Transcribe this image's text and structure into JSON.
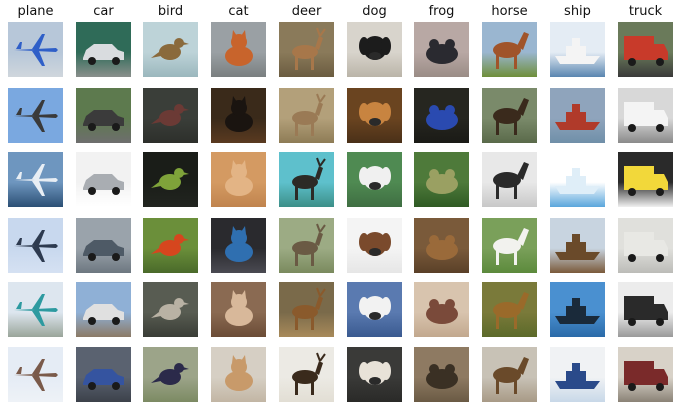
{
  "columns": [
    {
      "label": "plane",
      "tiles": [
        {
          "icon": "airplane-icon",
          "sky": "#b7c7d9",
          "ground": "#cfd6dc",
          "subject": "#2f5fc8"
        },
        {
          "icon": "airplane-icon",
          "sky": "#7aa8e0",
          "ground": "#7aa8e0",
          "subject": "#3a3a3a"
        },
        {
          "icon": "airplane-icon",
          "sky": "#6e96bf",
          "ground": "#2b4f74",
          "subject": "#e8eef4"
        },
        {
          "icon": "airplane-icon",
          "sky": "#c8d8ee",
          "ground": "#d5e1f2",
          "subject": "#2d3a4f"
        },
        {
          "icon": "airplane-icon",
          "sky": "#dde6ef",
          "ground": "#9aa59a",
          "subject": "#2d9aa0"
        },
        {
          "icon": "airplane-icon",
          "sky": "#e5ecf5",
          "ground": "#eef2f7",
          "subject": "#7a5a4a"
        }
      ]
    },
    {
      "label": "car",
      "tiles": [
        {
          "icon": "car-icon",
          "sky": "#2f6b58",
          "ground": "#8a8f8c",
          "subject": "#d9dcdf"
        },
        {
          "icon": "car-icon",
          "sky": "#5d7a4e",
          "ground": "#6e6e6e",
          "subject": "#3b3b3b"
        },
        {
          "icon": "car-icon",
          "sky": "#f2f2f2",
          "ground": "#ffffff",
          "subject": "#a9adb2"
        },
        {
          "icon": "car-icon",
          "sky": "#9aa3ab",
          "ground": "#6d7780",
          "subject": "#4e5a66"
        },
        {
          "icon": "car-icon",
          "sky": "#8fb0d6",
          "ground": "#8c7a66",
          "subject": "#e0e0e0"
        },
        {
          "icon": "car-icon",
          "sky": "#5a6270",
          "ground": "#3c414a",
          "subject": "#3554a0"
        }
      ]
    },
    {
      "label": "bird",
      "tiles": [
        {
          "icon": "bird-icon",
          "sky": "#bdd3d8",
          "ground": "#9bb7bd",
          "subject": "#8a6a3c"
        },
        {
          "icon": "bird-icon",
          "sky": "#3a3e39",
          "ground": "#2d2f2b",
          "subject": "#6b3a35"
        },
        {
          "icon": "bird-icon",
          "sky": "#1a1d18",
          "ground": "#222520",
          "subject": "#7fa33a"
        },
        {
          "icon": "bird-icon",
          "sky": "#6b8f3a",
          "ground": "#4a6a2a",
          "subject": "#d6461e"
        },
        {
          "icon": "bird-icon",
          "sky": "#585c52",
          "ground": "#3a3d36",
          "subject": "#b9b2a4"
        },
        {
          "icon": "bird-icon",
          "sky": "#9ca489",
          "ground": "#7c8a63",
          "subject": "#2b2a4a"
        }
      ]
    },
    {
      "label": "cat",
      "tiles": [
        {
          "icon": "cat-icon",
          "sky": "#9aa0a4",
          "ground": "#7a7f80",
          "subject": "#c8642c"
        },
        {
          "icon": "cat-icon",
          "sky": "#3a2a1a",
          "ground": "#5a3a20",
          "subject": "#1a1410"
        },
        {
          "icon": "cat-icon",
          "sky": "#d49a62",
          "ground": "#c0844e",
          "subject": "#e3b485"
        },
        {
          "icon": "cat-icon",
          "sky": "#2a2a2e",
          "ground": "#4a4a52",
          "subject": "#2f6fb0"
        },
        {
          "icon": "cat-icon",
          "sky": "#8a6a52",
          "ground": "#6b4c36",
          "subject": "#d8b89a"
        },
        {
          "icon": "cat-icon",
          "sky": "#d6cfc4",
          "ground": "#c2b6a4",
          "subject": "#c89a6a"
        }
      ]
    },
    {
      "label": "deer",
      "tiles": [
        {
          "icon": "deer-icon",
          "sky": "#8a7a5a",
          "ground": "#6b5c40",
          "subject": "#a7774a"
        },
        {
          "icon": "deer-icon",
          "sky": "#b3a07a",
          "ground": "#8e7c56",
          "subject": "#9a7a55"
        },
        {
          "icon": "deer-icon",
          "sky": "#5ec0cc",
          "ground": "#3c8f88",
          "subject": "#2c2a25"
        },
        {
          "icon": "deer-icon",
          "sky": "#9cab84",
          "ground": "#7a8a5e",
          "subject": "#6a5a44"
        },
        {
          "icon": "deer-icon",
          "sky": "#7a6a4a",
          "ground": "#a88a5a",
          "subject": "#8a5a2c"
        },
        {
          "icon": "deer-icon",
          "sky": "#eceae4",
          "ground": "#e2ded4",
          "subject": "#3a2a1c"
        }
      ]
    },
    {
      "label": "dog",
      "tiles": [
        {
          "icon": "dog-icon",
          "sky": "#d8d4cc",
          "ground": "#bab4a8",
          "subject": "#1c1c1c"
        },
        {
          "icon": "dog-icon",
          "sky": "#6a4420",
          "ground": "#4a3018",
          "subject": "#c88440"
        },
        {
          "icon": "dog-icon",
          "sky": "#4f8a52",
          "ground": "#3f6e42",
          "subject": "#f0f0f0"
        },
        {
          "icon": "dog-icon",
          "sky": "#f4f4f4",
          "ground": "#e6e6e6",
          "subject": "#7a4a2c"
        },
        {
          "icon": "dog-icon",
          "sky": "#5a7ab0",
          "ground": "#3a5a90",
          "subject": "#f2f2f2"
        },
        {
          "icon": "dog-icon",
          "sky": "#3a3a38",
          "ground": "#2a2a28",
          "subject": "#e8e2d8"
        }
      ]
    },
    {
      "label": "frog",
      "tiles": [
        {
          "icon": "frog-icon",
          "sky": "#b8a8a4",
          "ground": "#9a8c86",
          "subject": "#2a2a30"
        },
        {
          "icon": "frog-icon",
          "sky": "#262620",
          "ground": "#1a1a16",
          "subject": "#2a4ab0"
        },
        {
          "icon": "frog-icon",
          "sky": "#4e7a3a",
          "ground": "#2f5a24",
          "subject": "#9aa062"
        },
        {
          "icon": "frog-icon",
          "sky": "#7a5a3a",
          "ground": "#5a4028",
          "subject": "#9a6a3a"
        },
        {
          "icon": "frog-icon",
          "sky": "#d8c4ae",
          "ground": "#c2a88e",
          "subject": "#7a4a3a"
        },
        {
          "icon": "frog-icon",
          "sky": "#8e7a62",
          "ground": "#6a5a44",
          "subject": "#3a3024"
        }
      ]
    },
    {
      "label": "horse",
      "tiles": [
        {
          "icon": "horse-icon",
          "sky": "#9ab6d0",
          "ground": "#6f8f3a",
          "subject": "#a0542a"
        },
        {
          "icon": "horse-icon",
          "sky": "#7a8a6a",
          "ground": "#5a6a4a",
          "subject": "#3a2a1c"
        },
        {
          "icon": "horse-icon",
          "sky": "#e8e8e8",
          "ground": "#c8c8c8",
          "subject": "#2a2a2a"
        },
        {
          "icon": "horse-icon",
          "sky": "#7aa05a",
          "ground": "#5c8a3c",
          "subject": "#f2f2ee"
        },
        {
          "icon": "horse-icon",
          "sky": "#7a7a3a",
          "ground": "#5c6a2a",
          "subject": "#9a6a2a"
        },
        {
          "icon": "horse-icon",
          "sky": "#c8c2b6",
          "ground": "#a89a86",
          "subject": "#6a4a2a"
        }
      ]
    },
    {
      "label": "ship",
      "tiles": [
        {
          "icon": "ship-icon",
          "sky": "#e4ecf4",
          "ground": "#5a86b0",
          "subject": "#f4f4f4"
        },
        {
          "icon": "ship-icon",
          "sky": "#8fa4bc",
          "ground": "#6f8fa8",
          "subject": "#b03a2a"
        },
        {
          "icon": "ship-icon",
          "sky": "#ffffff",
          "ground": "#5aa6dc",
          "subject": "#dfeef8"
        },
        {
          "icon": "ship-icon",
          "sky": "#c8d4e0",
          "ground": "#7a5a3a",
          "subject": "#6a4a2a"
        },
        {
          "icon": "ship-icon",
          "sky": "#4a90d0",
          "ground": "#2a6aa8",
          "subject": "#1a2a3a"
        },
        {
          "icon": "ship-icon",
          "sky": "#f0f2f4",
          "ground": "#c8d8e8",
          "subject": "#2a4a8a"
        }
      ]
    },
    {
      "label": "truck",
      "tiles": [
        {
          "icon": "truck-icon",
          "sky": "#6a7a5a",
          "ground": "#3a3a3a",
          "subject": "#c83a2a"
        },
        {
          "icon": "truck-icon",
          "sky": "#d8d8d8",
          "ground": "#8a8a8a",
          "subject": "#f4f4f4"
        },
        {
          "icon": "truck-icon",
          "sky": "#2a2a2a",
          "ground": "#f0f0f0",
          "subject": "#f2d83a"
        },
        {
          "icon": "truck-icon",
          "sky": "#e0e0dc",
          "ground": "#bcbcb8",
          "subject": "#e8e8e4"
        },
        {
          "icon": "truck-icon",
          "sky": "#ececec",
          "ground": "#9a9a9a",
          "subject": "#2a2a2a"
        },
        {
          "icon": "truck-icon",
          "sky": "#d8d2c8",
          "ground": "#8a8276",
          "subject": "#7a2a2a"
        }
      ]
    }
  ]
}
